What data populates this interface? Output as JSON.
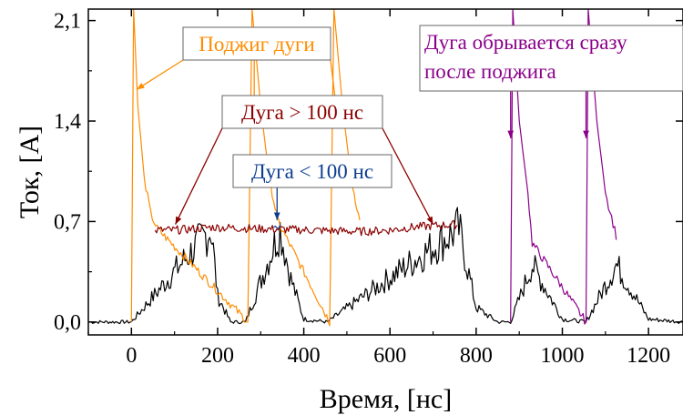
{
  "chart_data": {
    "type": "line",
    "title": "",
    "xlabel": "Время, [нс]",
    "ylabel": "Ток, [A]",
    "xlim": [
      -100,
      1280
    ],
    "ylim": [
      -0.09,
      2.18
    ],
    "x_ticks": [
      0,
      200,
      400,
      600,
      800,
      1000,
      1200
    ],
    "x_tick_labels": [
      "0",
      "200",
      "400",
      "600",
      "800",
      "1000",
      "1200"
    ],
    "y_ticks": [
      0.0,
      0.7,
      1.4,
      2.1
    ],
    "y_tick_labels": [
      "0,0",
      "0,7",
      "1,4",
      "2,1"
    ],
    "grid": false,
    "colors": {
      "ignition": "#ff8c00",
      "long_arc": "#8b0000",
      "short_arc": "#0b3d91",
      "break_arc": "#8b008b",
      "baseline": "#000000"
    },
    "series": [
      {
        "color": "black",
        "x": [
          -100,
          -50,
          0,
          185,
          190,
          200,
          230,
          265,
          345,
          370,
          400,
          455,
          760,
          800,
          850,
          880,
          930,
          1000,
          1055,
          1125,
          1200,
          1280
        ],
        "y": [
          0.0,
          0.0,
          0.0,
          0.65,
          0.5,
          0.18,
          0.0,
          0.0,
          0.65,
          0.3,
          0.02,
          0.0,
          0.65,
          0.1,
          0.0,
          0.0,
          0.4,
          0.02,
          0.0,
          0.4,
          0.02,
          0.0
        ]
      },
      {
        "color": "orange",
        "x": [
          0,
          5,
          15,
          30,
          45,
          60,
          270,
          280,
          300,
          320,
          340,
          460,
          470,
          490,
          510,
          530
        ],
        "y": [
          0.0,
          2.18,
          1.5,
          1.0,
          0.75,
          0.65,
          0.0,
          2.18,
          1.5,
          1.0,
          0.7,
          0.0,
          2.18,
          1.5,
          1.0,
          0.7
        ]
      },
      {
        "color": "darkred",
        "x": [
          55,
          100,
          150,
          185,
          530,
          600,
          650,
          700,
          755
        ],
        "y": [
          0.64,
          0.64,
          0.65,
          0.66,
          0.63,
          0.64,
          0.66,
          0.67,
          0.68
        ]
      },
      {
        "color": "blue",
        "x": [
          330,
          338,
          346
        ],
        "y": [
          0.66,
          0.67,
          0.68
        ]
      },
      {
        "color": "purple",
        "x": [
          880,
          885,
          900,
          920,
          930,
          1055,
          1060,
          1080,
          1100,
          1125
        ],
        "y": [
          0.0,
          2.18,
          1.4,
          0.9,
          0.55,
          0.0,
          2.18,
          1.4,
          0.9,
          0.6
        ]
      }
    ],
    "annotations": [
      {
        "text": "Поджиг дуги",
        "color": "orange",
        "arrows_to": [
          [
            12,
            1.62
          ],
          [
            285,
            1.5
          ],
          [
            475,
            1.5
          ]
        ]
      },
      {
        "text": "Дуга > 100 нс",
        "color": "darkred",
        "arrows_to": [
          [
            102,
            0.68
          ],
          [
            700,
            0.68
          ]
        ]
      },
      {
        "text": "Дуга < 100 нс",
        "color": "blue",
        "arrows_to": [
          [
            338,
            0.71
          ]
        ]
      },
      {
        "text": "Дуга обрывается сразу\nпосле поджига",
        "color": "purple",
        "arrows_to": [
          [
            880,
            1.28
          ],
          [
            1055,
            1.28
          ]
        ]
      }
    ],
    "annotation_lines": [
      "Дуга обрывается сразу",
      "после поджига"
    ]
  }
}
